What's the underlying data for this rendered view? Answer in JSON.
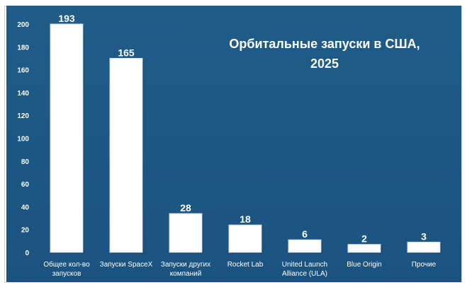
{
  "colors": {
    "background": "#1e5985",
    "bar_fill": "#ffffff",
    "text": "#ffffff"
  },
  "chart_data": {
    "type": "bar",
    "title": [
      "Орбитальные запуски в США,",
      "2025"
    ],
    "xlabel": "",
    "ylabel": "",
    "ylim": [
      0,
      200
    ],
    "yticks": [
      0,
      20,
      40,
      60,
      80,
      100,
      120,
      140,
      160,
      180,
      200
    ],
    "grid": false,
    "legend": "none",
    "categories": [
      [
        "Общее кол-во",
        "запусков"
      ],
      [
        "Запуски SpaceX"
      ],
      [
        "Запуски других",
        "компаний"
      ],
      [
        "Rocket Lab"
      ],
      [
        "United Launch",
        "Alliance (ULA)"
      ],
      [
        "Blue Origin"
      ],
      [
        "Прочие"
      ]
    ],
    "values": [
      193,
      165,
      28,
      18,
      6,
      2,
      3
    ],
    "data_labels": [
      "193",
      "165",
      "28",
      "18",
      "6",
      "2",
      "3"
    ],
    "display_heights": [
      200,
      170,
      34,
      24,
      11,
      7,
      9
    ]
  }
}
